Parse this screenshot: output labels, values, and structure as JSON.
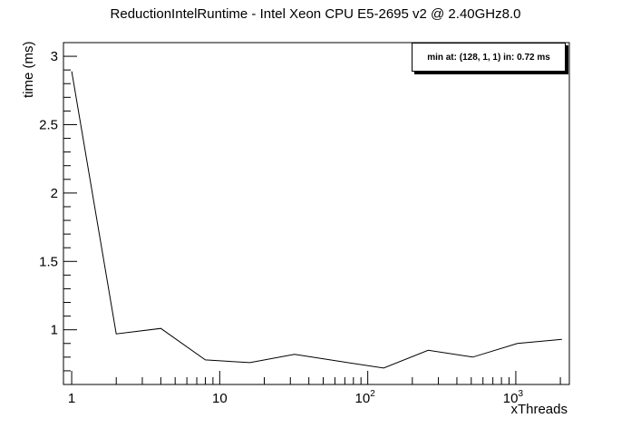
{
  "chart_data": {
    "type": "line",
    "title": "ReductionIntelRuntime - Intel Xeon CPU E5-2695 v2 @ 2.40GHz8.0",
    "xlabel": "xThreads",
    "ylabel": "time (ms)",
    "x_scale": "log",
    "xlim": [
      0.88,
      2300
    ],
    "ylim": [
      0.6,
      3.1
    ],
    "x_ticks": [
      {
        "value": 1,
        "label": "1"
      },
      {
        "value": 10,
        "label": "10"
      },
      {
        "value": 100,
        "label": "10",
        "exp": "2"
      },
      {
        "value": 1000,
        "label": "10",
        "exp": "3"
      }
    ],
    "y_ticks": [
      {
        "value": 1,
        "label": "1"
      },
      {
        "value": 1.5,
        "label": "1.5"
      },
      {
        "value": 2,
        "label": "2"
      },
      {
        "value": 2.5,
        "label": "2.5"
      },
      {
        "value": 3,
        "label": "3"
      }
    ],
    "series": [
      {
        "x": [
          1,
          2,
          4,
          8,
          16,
          32,
          64,
          128,
          256,
          512,
          1024,
          2048
        ],
        "y": [
          2.89,
          0.97,
          1.01,
          0.78,
          0.76,
          0.82,
          0.77,
          0.72,
          0.85,
          0.8,
          0.9,
          0.93
        ]
      }
    ],
    "stats_text": "min at: (128, 1, 1) in: 0.72 ms",
    "grid": false,
    "legend": "top-right"
  }
}
